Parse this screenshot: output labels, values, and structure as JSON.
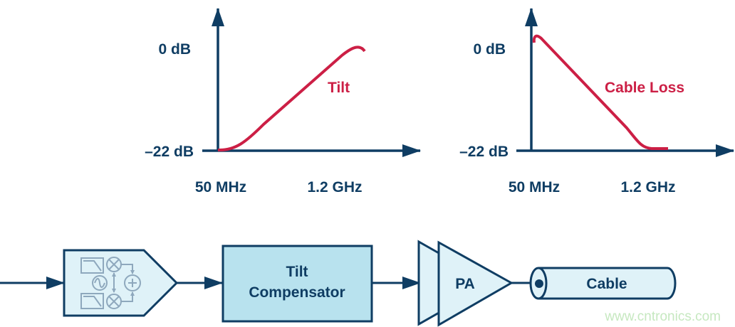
{
  "graphs": [
    {
      "y_top": "0 dB",
      "y_bottom": "–22 dB",
      "x_left": "50 MHz",
      "x_right": "1.2 GHz",
      "curve_label": "Tilt",
      "curve_color": "#cc1f45",
      "trend": "rising"
    },
    {
      "y_top": "0 dB",
      "y_bottom": "–22 dB",
      "x_left": "50 MHz",
      "x_right": "1.2 GHz",
      "curve_label": "Cable Loss",
      "curve_color": "#cc1f45",
      "trend": "falling"
    }
  ],
  "chain": {
    "modulator_icon": "iq-modulator-icon",
    "tilt_line1": "Tilt",
    "tilt_line2": "Compensator",
    "pa_label": "PA",
    "cable_label": "Cable"
  },
  "watermark": "www.cntronics.com",
  "colors": {
    "line": "#0f3d63",
    "block_fill": "#dff2f8",
    "tilt_fill": "#b8e2ee",
    "curve": "#cc1f45"
  }
}
